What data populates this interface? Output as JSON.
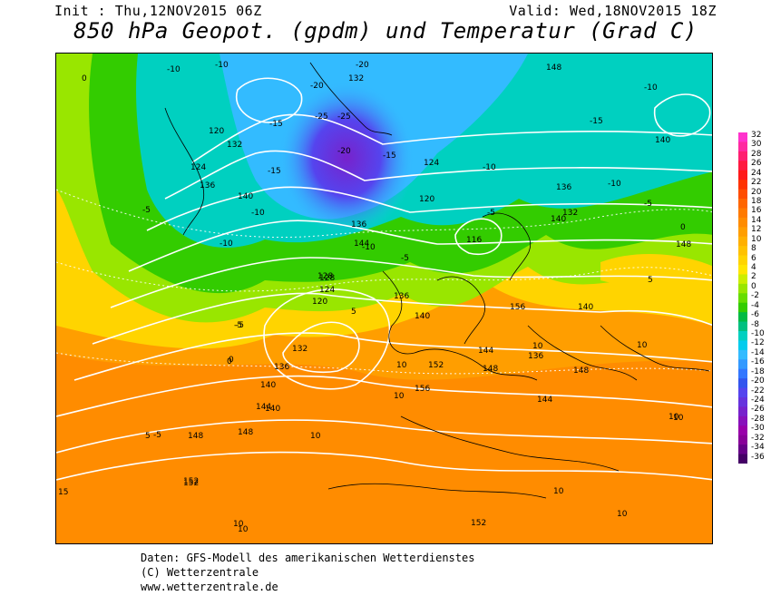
{
  "header": {
    "init": "Init : Thu,12NOV2015 06Z",
    "valid": "Valid: Wed,18NOV2015 18Z",
    "title": "850 hPa Geopot. (gpdm) und Temperatur (Grad C)"
  },
  "footer": {
    "line1": "Daten: GFS-Modell des amerikanischen Wetterdienstes",
    "line2": "(C) Wetterzentrale",
    "line3": "www.wetterzentrale.de"
  },
  "color_scale": {
    "labels": [
      "32",
      "30",
      "28",
      "26",
      "24",
      "22",
      "20",
      "18",
      "16",
      "14",
      "12",
      "10",
      "8",
      "6",
      "4",
      "2",
      "0",
      "-2",
      "-4",
      "-6",
      "-8",
      "-10",
      "-12",
      "-14",
      "-16",
      "-18",
      "-20",
      "-22",
      "-24",
      "-26",
      "-28",
      "-30",
      "-32",
      "-34",
      "-36"
    ],
    "colors": [
      "#ff33cc",
      "#ff2aa0",
      "#ff1f70",
      "#ff1a40",
      "#ff1a1a",
      "#ff3300",
      "#ff4d00",
      "#ff6600",
      "#ff7a00",
      "#ff8c00",
      "#ff9e00",
      "#ffb000",
      "#ffc200",
      "#ffd400",
      "#ffe600",
      "#ccee00",
      "#99e600",
      "#66dd00",
      "#33cc00",
      "#00bb44",
      "#00c080",
      "#00d0c0",
      "#00ccee",
      "#33bbff",
      "#3399ff",
      "#3377ff",
      "#3355ee",
      "#5544ee",
      "#6633dd",
      "#7722cc",
      "#8811bb",
      "#9900aa",
      "#880099",
      "#660088",
      "#440066"
    ]
  },
  "map_labels": {
    "geopotential": [
      "152",
      "148",
      "144",
      "140",
      "136",
      "132",
      "128",
      "124",
      "120",
      "116",
      "136",
      "140",
      "144",
      "148",
      "152",
      "156",
      "148",
      "140",
      "136",
      "132",
      "124",
      "120",
      "128",
      "136",
      "132",
      "124",
      "120",
      "140",
      "148",
      "152",
      "156",
      "140",
      "136",
      "144",
      "148",
      "152",
      "140",
      "144",
      "136",
      "132",
      "140",
      "148"
    ],
    "temperature": [
      "-10",
      "-10",
      "-15",
      "-20",
      "-20",
      "-25",
      "-25",
      "-20",
      "-15",
      "-10",
      "-5",
      "0",
      "-5",
      "-10",
      "-15",
      "-10",
      "-5",
      "0",
      "5",
      "10",
      "10",
      "10",
      "10",
      "10",
      "10",
      "5",
      "-5",
      "-10",
      "-15",
      "-10",
      "-5",
      "0",
      "5",
      "10",
      "10",
      "10",
      "10",
      "15",
      "10",
      "-5",
      "-10",
      "0",
      "-5"
    ]
  }
}
